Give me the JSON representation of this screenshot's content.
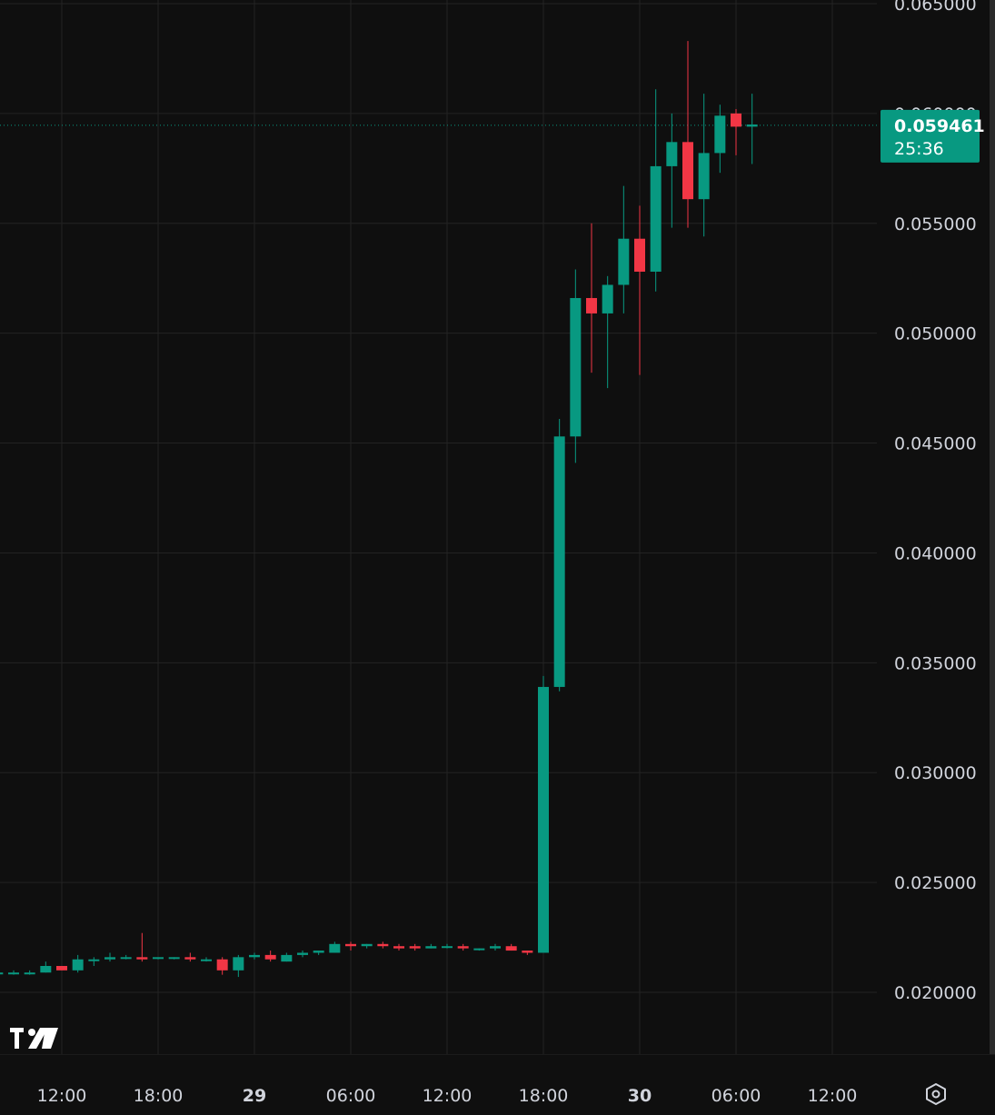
{
  "chart_data": {
    "type": "candlestick",
    "title": "",
    "xlabel": "",
    "ylabel": "",
    "ylim": [
      0.0175,
      0.0653
    ],
    "grid": true,
    "legend": "none",
    "colors": {
      "background": "#0f0f0f",
      "grid": "#232323",
      "up": "#089981",
      "down": "#f23645",
      "text": "#d1d4dc",
      "price_line": "#089981"
    },
    "y_ticks": [
      {
        "value": 0.065,
        "label": "0.065000"
      },
      {
        "value": 0.06,
        "label": "0.060000"
      },
      {
        "value": 0.055,
        "label": "0.055000"
      },
      {
        "value": 0.05,
        "label": "0.050000"
      },
      {
        "value": 0.045,
        "label": "0.045000"
      },
      {
        "value": 0.04,
        "label": "0.040000"
      },
      {
        "value": 0.035,
        "label": "0.035000"
      },
      {
        "value": 0.03,
        "label": "0.030000"
      },
      {
        "value": 0.025,
        "label": "0.025000"
      },
      {
        "value": 0.02,
        "label": "0.020000"
      }
    ],
    "x_ticks": [
      {
        "label": "12:00",
        "bold": false
      },
      {
        "label": "18:00",
        "bold": false
      },
      {
        "label": "29",
        "bold": true
      },
      {
        "label": "06:00",
        "bold": false
      },
      {
        "label": "12:00",
        "bold": false
      },
      {
        "label": "18:00",
        "bold": false
      },
      {
        "label": "30",
        "bold": true
      },
      {
        "label": "06:00",
        "bold": false
      },
      {
        "label": "12:00",
        "bold": false
      }
    ],
    "x_tick_hours": [
      -6,
      0,
      6,
      12,
      18,
      24,
      30,
      36,
      42
    ],
    "candle_interval_hours": 1,
    "candles": [
      {
        "t": -10,
        "o": 0.0209,
        "h": 0.021,
        "l": 0.0208,
        "c": 0.0209
      },
      {
        "t": -9,
        "o": 0.0209,
        "h": 0.021,
        "l": 0.0208,
        "c": 0.0209
      },
      {
        "t": -8,
        "o": 0.0209,
        "h": 0.021,
        "l": 0.0208,
        "c": 0.0209
      },
      {
        "t": -7,
        "o": 0.0209,
        "h": 0.0214,
        "l": 0.0209,
        "c": 0.0212
      },
      {
        "t": -6,
        "o": 0.0212,
        "h": 0.0212,
        "l": 0.021,
        "c": 0.021
      },
      {
        "t": -5,
        "o": 0.021,
        "h": 0.0217,
        "l": 0.0209,
        "c": 0.0215
      },
      {
        "t": -4,
        "o": 0.0215,
        "h": 0.0216,
        "l": 0.0212,
        "c": 0.0215
      },
      {
        "t": -3,
        "o": 0.0215,
        "h": 0.0218,
        "l": 0.0214,
        "c": 0.0216
      },
      {
        "t": -2,
        "o": 0.0216,
        "h": 0.0217,
        "l": 0.0215,
        "c": 0.0216
      },
      {
        "t": -1,
        "o": 0.0216,
        "h": 0.0227,
        "l": 0.0214,
        "c": 0.0215
      },
      {
        "t": 0,
        "o": 0.0216,
        "h": 0.0216,
        "l": 0.0215,
        "c": 0.0216
      },
      {
        "t": 1,
        "o": 0.0216,
        "h": 0.0216,
        "l": 0.0215,
        "c": 0.0216
      },
      {
        "t": 2,
        "o": 0.0216,
        "h": 0.0218,
        "l": 0.0214,
        "c": 0.0215
      },
      {
        "t": 3,
        "o": 0.0215,
        "h": 0.0216,
        "l": 0.0214,
        "c": 0.0215
      },
      {
        "t": 4,
        "o": 0.0215,
        "h": 0.0216,
        "l": 0.0208,
        "c": 0.021
      },
      {
        "t": 5,
        "o": 0.021,
        "h": 0.0217,
        "l": 0.0207,
        "c": 0.0216
      },
      {
        "t": 6,
        "o": 0.0216,
        "h": 0.0218,
        "l": 0.0215,
        "c": 0.0217
      },
      {
        "t": 7,
        "o": 0.0217,
        "h": 0.0219,
        "l": 0.0214,
        "c": 0.0215
      },
      {
        "t": 8,
        "o": 0.0214,
        "h": 0.0218,
        "l": 0.0214,
        "c": 0.0217
      },
      {
        "t": 9,
        "o": 0.0217,
        "h": 0.0219,
        "l": 0.0216,
        "c": 0.0218
      },
      {
        "t": 10,
        "o": 0.0218,
        "h": 0.0219,
        "l": 0.0217,
        "c": 0.0219
      },
      {
        "t": 11,
        "o": 0.0218,
        "h": 0.0223,
        "l": 0.0218,
        "c": 0.0222
      },
      {
        "t": 12,
        "o": 0.0222,
        "h": 0.0223,
        "l": 0.0219,
        "c": 0.0221
      },
      {
        "t": 13,
        "o": 0.0221,
        "h": 0.0222,
        "l": 0.022,
        "c": 0.0222
      },
      {
        "t": 14,
        "o": 0.0222,
        "h": 0.0223,
        "l": 0.022,
        "c": 0.0221
      },
      {
        "t": 15,
        "o": 0.0221,
        "h": 0.0222,
        "l": 0.0219,
        "c": 0.022
      },
      {
        "t": 16,
        "o": 0.0221,
        "h": 0.0222,
        "l": 0.0219,
        "c": 0.022
      },
      {
        "t": 17,
        "o": 0.022,
        "h": 0.0222,
        "l": 0.022,
        "c": 0.0221
      },
      {
        "t": 18,
        "o": 0.0221,
        "h": 0.0222,
        "l": 0.022,
        "c": 0.0221
      },
      {
        "t": 19,
        "o": 0.0221,
        "h": 0.0222,
        "l": 0.0219,
        "c": 0.022
      },
      {
        "t": 20,
        "o": 0.022,
        "h": 0.022,
        "l": 0.0219,
        "c": 0.022
      },
      {
        "t": 21,
        "o": 0.022,
        "h": 0.0222,
        "l": 0.0219,
        "c": 0.0221
      },
      {
        "t": 22,
        "o": 0.0221,
        "h": 0.0222,
        "l": 0.0219,
        "c": 0.0219
      },
      {
        "t": 23,
        "o": 0.0219,
        "h": 0.0219,
        "l": 0.0217,
        "c": 0.0218
      },
      {
        "t": 24,
        "o": 0.0218,
        "h": 0.0344,
        "l": 0.0218,
        "c": 0.0339
      },
      {
        "t": 25,
        "o": 0.0339,
        "h": 0.0461,
        "l": 0.0337,
        "c": 0.0453
      },
      {
        "t": 26,
        "o": 0.0453,
        "h": 0.0529,
        "l": 0.0441,
        "c": 0.0516
      },
      {
        "t": 27,
        "o": 0.0516,
        "h": 0.055,
        "l": 0.0482,
        "c": 0.0509
      },
      {
        "t": 28,
        "o": 0.0509,
        "h": 0.0526,
        "l": 0.0475,
        "c": 0.0522
      },
      {
        "t": 29,
        "o": 0.0522,
        "h": 0.0567,
        "l": 0.0509,
        "c": 0.0543
      },
      {
        "t": 30,
        "o": 0.0543,
        "h": 0.0558,
        "l": 0.0481,
        "c": 0.0528
      },
      {
        "t": 31,
        "o": 0.0528,
        "h": 0.0611,
        "l": 0.0519,
        "c": 0.0576
      },
      {
        "t": 32,
        "o": 0.0576,
        "h": 0.06,
        "l": 0.0548,
        "c": 0.0587
      },
      {
        "t": 33,
        "o": 0.0587,
        "h": 0.0633,
        "l": 0.0548,
        "c": 0.0561
      },
      {
        "t": 34,
        "o": 0.0561,
        "h": 0.0609,
        "l": 0.0544,
        "c": 0.0582
      },
      {
        "t": 35,
        "o": 0.0582,
        "h": 0.0604,
        "l": 0.0573,
        "c": 0.0599
      },
      {
        "t": 36,
        "o": 0.06,
        "h": 0.0602,
        "l": 0.0581,
        "c": 0.0594
      },
      {
        "t": 37,
        "o": 0.0594,
        "h": 0.0609,
        "l": 0.0577,
        "c": 0.0595
      }
    ],
    "last_price": {
      "value": 0.059461,
      "label": "0.059461",
      "countdown": "25:36"
    }
  },
  "icons": {
    "logo": "tradingview-logo",
    "settings": "settings-hexagon-icon"
  }
}
